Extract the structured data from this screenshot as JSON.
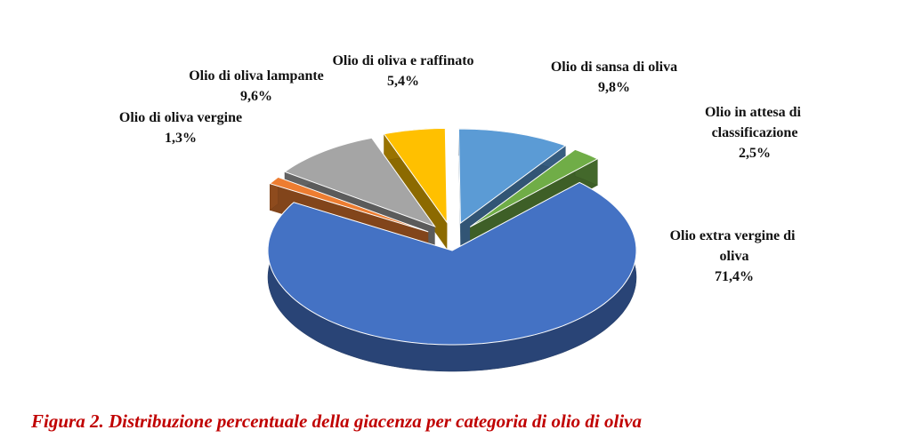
{
  "chart_data": {
    "type": "pie",
    "title": "Figura 2. Distribuzione percentuale della giacenza per categoria di olio di oliva",
    "categories": [
      "Olio di oliva e raffinato",
      "Olio di sansa di oliva",
      "Olio in attesa di classificazione",
      "Olio extra vergine di oliva",
      "Olio di oliva vergine",
      "Olio di oliva lampante"
    ],
    "values": [
      5.4,
      9.8,
      2.5,
      71.4,
      1.3,
      9.6
    ],
    "value_labels": [
      "5,4%",
      "9,8%",
      "2,5%",
      "71,4%",
      "1,3%",
      "9,6%"
    ],
    "colors": [
      "#ffc000",
      "#5b9bd5",
      "#70ad47",
      "#4472c4",
      "#ed7d31",
      "#a5a5a5"
    ]
  }
}
